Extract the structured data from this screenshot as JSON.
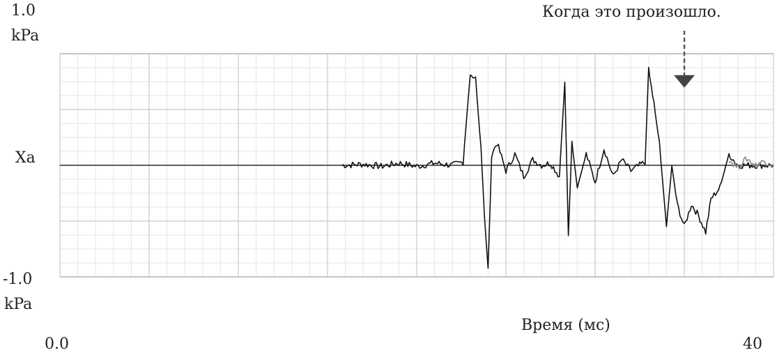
{
  "chart_data": {
    "type": "line",
    "title": "",
    "xlabel": "Время (мс)",
    "ylabel": "",
    "xlim": [
      0,
      40
    ],
    "ylim": [
      -1.0,
      1.0
    ],
    "grid": true,
    "y_tick_labels": {
      "top": {
        "value": "1.0",
        "unit": "kPa"
      },
      "middle": {
        "value": "Xa"
      },
      "bottom": {
        "value": "-1.0",
        "unit": "kPa"
      }
    },
    "x_tick_labels": {
      "start": "0.0",
      "end": "40"
    },
    "annotation": {
      "text": "Когда это произошло.",
      "x": 35.0,
      "y": 0.72
    },
    "series": [
      {
        "color": "#111111",
        "x": [
          15.8,
          17,
          18,
          19,
          20,
          21,
          22,
          22.6,
          23.0,
          23.3,
          23.6,
          23.8,
          24.0,
          24.2,
          24.5,
          25,
          25.5,
          26,
          26.5,
          27,
          27.5,
          28,
          28.3,
          28.5,
          28.7,
          29,
          29.5,
          30,
          30.5,
          31,
          31.5,
          32,
          32.5,
          32.8,
          33.0,
          33.3,
          33.6,
          34.0,
          34.3,
          34.6,
          35.0,
          35.4,
          35.8,
          36.2,
          36.5,
          37.0,
          37.5,
          38,
          39,
          40
        ],
        "y": [
          0,
          0.01,
          -0.01,
          0.02,
          -0.01,
          0.02,
          0.0,
          0.03,
          0.82,
          0.78,
          0.15,
          -0.45,
          -0.95,
          0.1,
          0.2,
          -0.05,
          0.1,
          -0.1,
          0.05,
          0.0,
          0.02,
          -0.1,
          0.75,
          -0.6,
          0.2,
          -0.2,
          0.1,
          -0.15,
          0.15,
          -0.1,
          0.05,
          -0.05,
          0.0,
          0.03,
          0.85,
          0.55,
          0.2,
          -0.55,
          0.0,
          -0.35,
          -0.55,
          -0.35,
          -0.45,
          -0.6,
          -0.3,
          -0.2,
          0.1,
          0.0,
          0.0,
          0.0
        ]
      },
      {
        "color": "#8a8a8a",
        "x": [
          37.5,
          38,
          38.5,
          39,
          39.5,
          40
        ],
        "y": [
          0.05,
          -0.02,
          0.06,
          0.0,
          0.04,
          0.0
        ]
      }
    ]
  }
}
